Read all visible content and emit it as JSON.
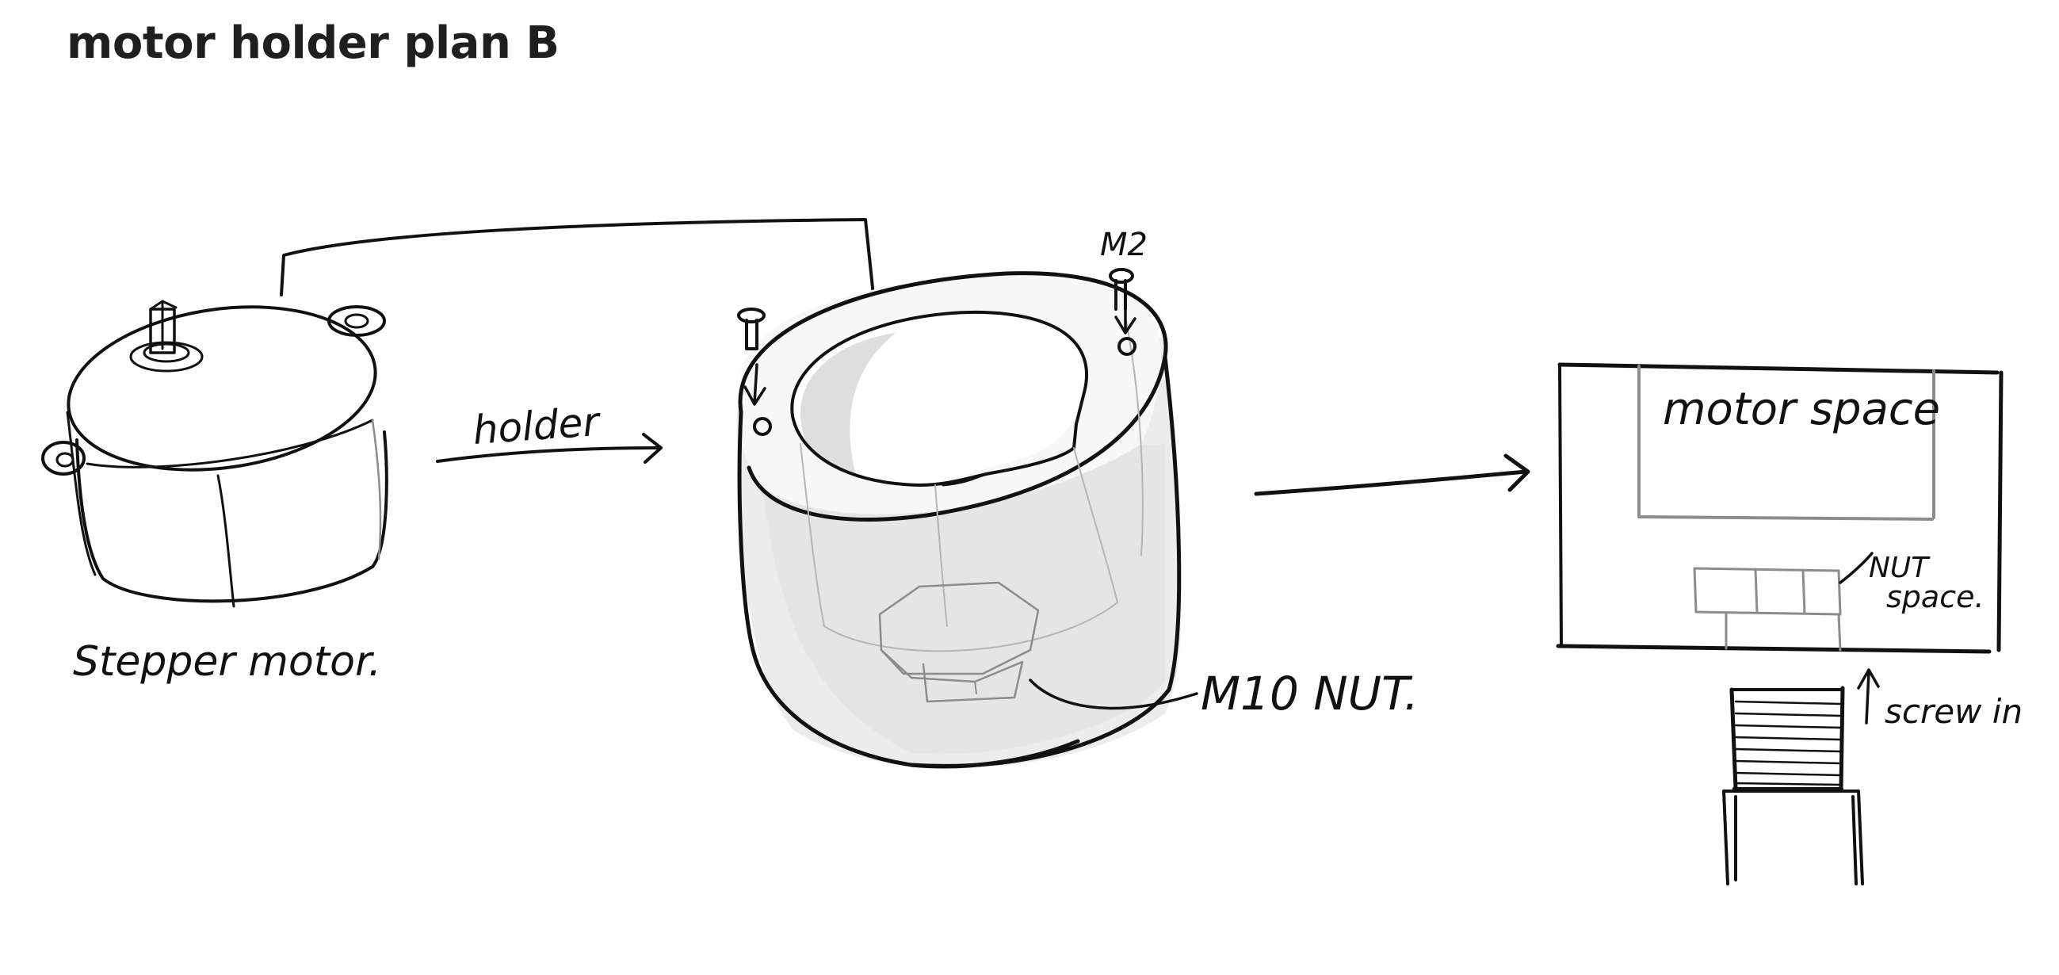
{
  "page": {
    "title": "motor holder plan B"
  },
  "sketch": {
    "labels": {
      "stepper_motor": "Stepper motor.",
      "holder": "holder",
      "m2": "M2",
      "m10_nut": "M10 NUT.",
      "motor_space": "motor space",
      "nut_space_line1": "NUT",
      "nut_space_line2": "space.",
      "screw_in": "screw in"
    }
  },
  "colors": {
    "ink": "#111111",
    "shading": "#e3e3e3",
    "pencil": "#8c8c8c",
    "title": "#1f1f1f"
  }
}
